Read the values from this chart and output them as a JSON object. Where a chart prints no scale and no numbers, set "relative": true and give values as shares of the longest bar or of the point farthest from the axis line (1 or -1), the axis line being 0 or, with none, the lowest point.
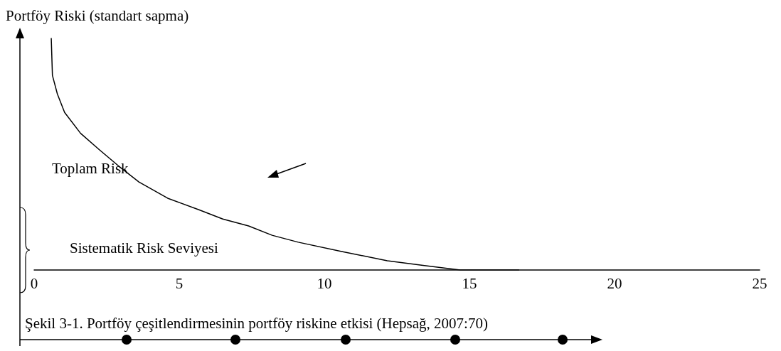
{
  "chart_data": {
    "type": "line",
    "ylabel": "Portföy Riski (standart sapma)",
    "relative": true,
    "xlim": [
      0,
      25
    ],
    "xticks": [
      0,
      5,
      10,
      15,
      20,
      25
    ],
    "marker": "none",
    "line_style": "solid",
    "series": [
      {
        "color": "#000000",
        "x": [
          0.59,
          0.63,
          0.8,
          1.05,
          1.6,
          2.24,
          2.9,
          3.61,
          4.6,
          5.68,
          6.5,
          7.39,
          8.2,
          9.1,
          10.6,
          12.17,
          13.4,
          14.68,
          16.7
        ],
        "values": [
          1,
          0.84,
          0.76,
          0.68,
          0.59,
          0.52,
          0.45,
          0.38,
          0.31,
          0.26,
          0.22,
          0.19,
          0.15,
          0.12,
          0.08,
          0.04,
          0.02,
          0,
          0
        ]
      }
    ],
    "annotations": [
      "Toplam Risk",
      "Sistematik Risk Seviyesi",
      "Şekil 3-1. Portföy çeşitlendirmesinin portföy riskine etkisi (Hepsağ, 2007:70)"
    ]
  }
}
